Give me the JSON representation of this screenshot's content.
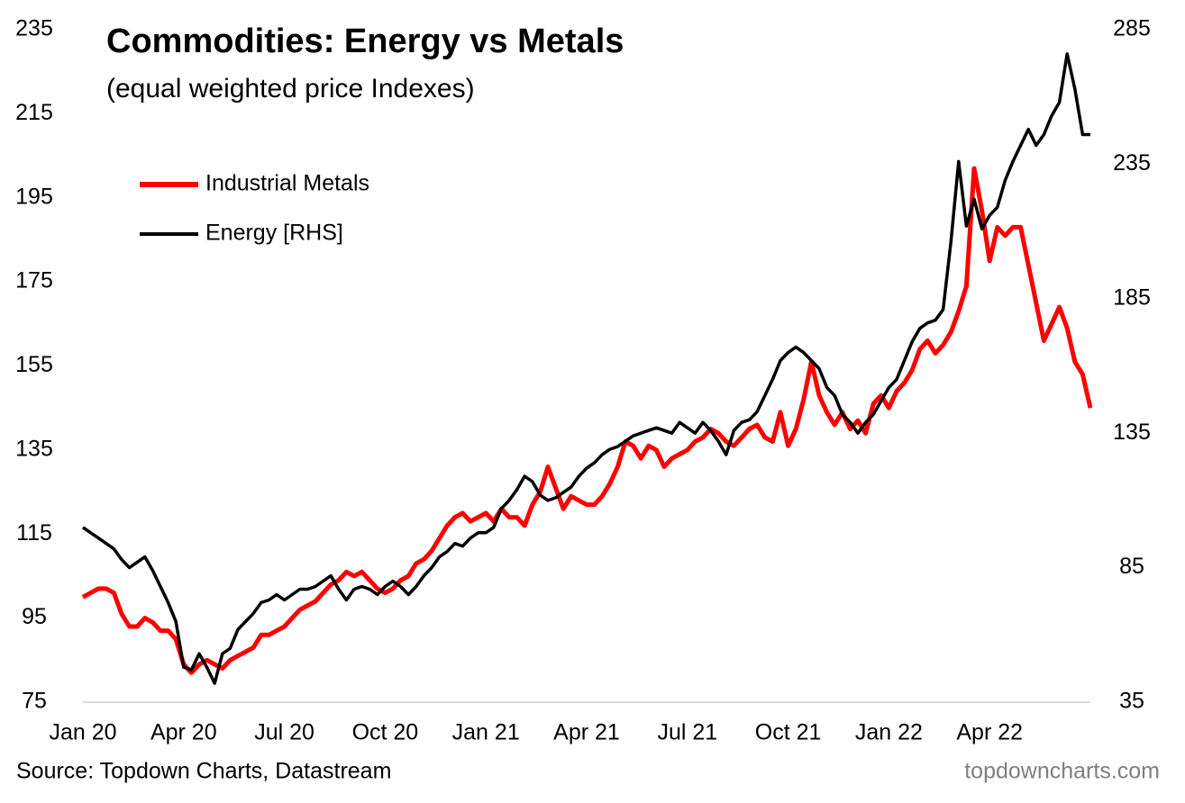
{
  "chart_data": {
    "type": "line",
    "title": "Commodities: Energy vs Metals",
    "subtitle": "(equal weighted price Indexes)",
    "source": "Source: Topdown Charts, Datastream",
    "watermark": "topdowncharts.com",
    "legend": "top-left",
    "categories": [
      "Jan 20",
      null,
      null,
      null,
      null,
      null,
      null,
      null,
      null,
      null,
      null,
      null,
      null,
      "Apr 20",
      null,
      null,
      null,
      null,
      null,
      null,
      null,
      null,
      null,
      null,
      null,
      null,
      "Jul 20",
      null,
      null,
      null,
      null,
      null,
      null,
      null,
      null,
      null,
      null,
      null,
      null,
      "Oct 20",
      null,
      null,
      null,
      null,
      null,
      null,
      null,
      null,
      null,
      null,
      null,
      null,
      "Jan 21",
      null,
      null,
      null,
      null,
      null,
      null,
      null,
      null,
      null,
      null,
      null,
      null,
      "Apr 21",
      null,
      null,
      null,
      null,
      null,
      null,
      null,
      null,
      null,
      null,
      null,
      null,
      "Jul 21",
      null,
      null,
      null,
      null,
      null,
      null,
      null,
      null,
      null,
      null,
      null,
      null,
      "Oct 21",
      null,
      null,
      null,
      null,
      null,
      null,
      null,
      null,
      null,
      null,
      null,
      null,
      "Jan 22",
      null,
      null,
      null,
      null,
      null,
      null,
      null,
      null,
      null,
      null,
      null,
      null,
      "Apr 22",
      null,
      null,
      null,
      null,
      null,
      null,
      null,
      null,
      null,
      null,
      null,
      null,
      null
    ],
    "series": [
      {
        "name": "Industrial Metals",
        "color": "#ff0000",
        "axis": "y",
        "values": [
          100,
          101,
          102,
          102,
          101,
          96,
          93,
          93,
          95,
          94,
          92,
          92,
          90,
          84,
          82,
          84,
          85,
          84,
          83,
          85,
          86,
          87,
          88,
          91,
          91,
          92,
          93,
          95,
          97,
          98,
          99,
          101,
          103,
          104,
          106,
          105,
          106,
          104,
          102,
          101,
          102,
          104,
          105,
          108,
          109,
          111,
          114,
          117,
          119,
          120,
          118,
          119,
          120,
          118,
          121,
          119,
          119,
          117,
          122,
          125,
          131,
          126,
          121,
          124,
          123,
          122,
          122,
          124,
          127,
          131,
          137,
          136,
          133,
          136,
          135,
          131,
          133,
          134,
          135,
          137,
          138,
          140,
          139,
          137,
          136,
          138,
          140,
          141,
          138,
          137,
          144,
          136,
          140,
          147,
          156,
          148,
          144,
          141,
          144,
          140,
          142,
          139,
          146,
          148,
          145,
          149,
          151,
          154,
          159,
          161,
          158,
          160,
          163,
          168,
          174,
          202,
          192,
          180,
          188,
          186,
          188,
          188,
          179,
          170,
          161,
          165,
          169,
          164,
          156,
          153,
          145
        ]
      },
      {
        "name": "Energy [RHS]",
        "color": "#000000",
        "axis": "y2",
        "values": [
          100,
          98,
          96,
          94,
          92,
          88,
          85,
          87,
          89,
          84,
          78,
          72,
          65,
          48,
          47,
          53,
          48,
          42,
          53,
          55,
          62,
          65,
          68,
          72,
          73,
          75,
          73,
          75,
          77,
          77,
          78,
          80,
          82,
          77,
          73,
          77,
          78,
          77,
          75,
          78,
          80,
          78,
          75,
          78,
          82,
          85,
          89,
          91,
          94,
          93,
          96,
          98,
          98,
          100,
          107,
          110,
          114,
          119,
          117,
          112,
          110,
          111,
          113,
          115,
          119,
          122,
          124,
          127,
          129,
          130,
          132,
          134,
          135,
          136,
          137,
          136,
          135,
          139,
          137,
          135,
          139,
          136,
          132,
          127,
          136,
          139,
          140,
          143,
          149,
          155,
          162,
          165,
          167,
          165,
          162,
          159,
          152,
          149,
          142,
          139,
          135,
          139,
          142,
          147,
          152,
          155,
          162,
          169,
          174,
          176,
          177,
          181,
          206,
          236,
          212,
          222,
          211,
          216,
          219,
          229,
          236,
          242,
          248,
          242,
          246,
          253,
          258,
          276,
          263,
          246,
          246
        ]
      }
    ],
    "ylim": [
      75,
      235
    ],
    "yticks": [
      75,
      95,
      115,
      135,
      155,
      175,
      195,
      215,
      235
    ],
    "y2lim": [
      35,
      285
    ],
    "y2ticks": [
      35,
      85,
      135,
      185,
      235,
      285
    ]
  }
}
